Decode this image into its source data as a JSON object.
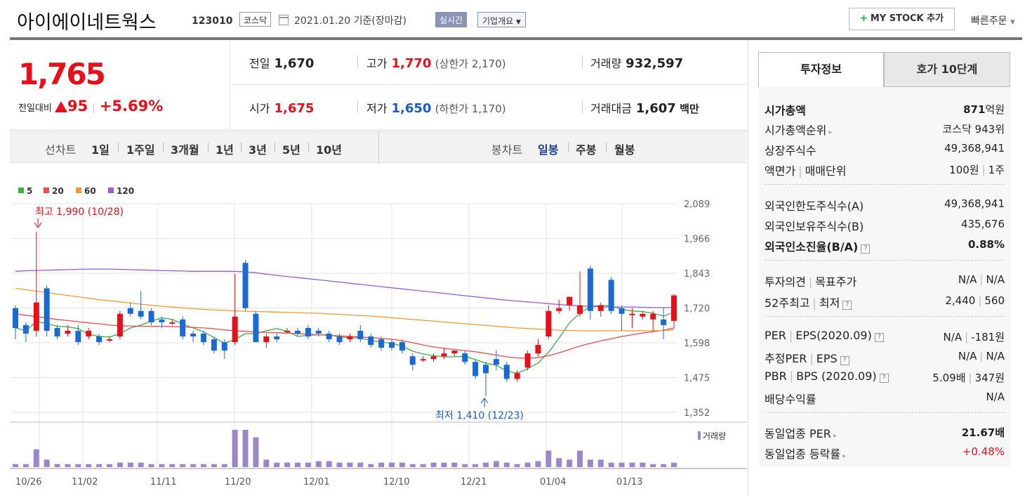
{
  "header": {
    "company": "아이에이네트웍스",
    "code": "123010",
    "market": "코스닥",
    "date": "2021.01.20 기준(장마감)",
    "realtime": "실시간",
    "overview": "기업개요",
    "mystock": "MY STOCK 추가",
    "quick_order": "빠른주문"
  },
  "price": {
    "current": "1,765",
    "change_label": "전일대비",
    "change": "95",
    "change_pct": "+5.69%"
  },
  "stats": {
    "prev_label": "전일",
    "prev": "1,670",
    "high_label": "고가",
    "high": "1,770",
    "upper_limit": "(상한가 2,170)",
    "volume_label": "거래량",
    "volume": "932,597",
    "open_label": "시가",
    "open": "1,675",
    "low_label": "저가",
    "low": "1,650",
    "lower_limit": "(하한가 1,170)",
    "amount_label": "거래대금",
    "amount": "1,607",
    "amount_unit": "백만"
  },
  "period_bar": {
    "line_label": "선차트",
    "line_periods": [
      "1일",
      "1주일",
      "3개월",
      "1년",
      "3년",
      "5년",
      "10년"
    ],
    "candle_label": "봉차트",
    "candle_periods": [
      "일봉",
      "주봉",
      "월봉"
    ],
    "candle_active": "일봉"
  },
  "chart_data": {
    "type": "candlestick",
    "legend": [
      "5",
      "20",
      "60",
      "120"
    ],
    "legend_colors": [
      "#3cb043",
      "#ef4b4b",
      "#f39a2e",
      "#9b5bd0"
    ],
    "y_ticks": [
      "2,089",
      "1,966",
      "1,843",
      "1,720",
      "1,598",
      "1,475",
      "1,352"
    ],
    "x_ticks": [
      "10/26",
      "11/02",
      "11/11",
      "11/20",
      "12/01",
      "12/10",
      "12/21",
      "01/04",
      "01/13"
    ],
    "ylim": [
      1352,
      2089
    ],
    "high_note": "최고 1,990 (10/28)",
    "low_note": "최저 1,410 (12/23)",
    "volume_label": "거래량",
    "up_color": "#e5101a",
    "down_color": "#1a6ad6",
    "volume_color": "#9b86c9"
  },
  "side": {
    "tab_active": "투자정보",
    "tab_other": "호가 10단계",
    "rows": {
      "mcap_label": "시가총액",
      "mcap": "871",
      "mcap_unit": "억원",
      "mcap_rank_label": "시가총액순위",
      "mcap_rank": "코스닥 943위",
      "shares_label": "상장주식수",
      "shares": "49,368,941",
      "par_label": "액면가",
      "trade_unit_label": "매매단위",
      "par": "100원",
      "trade_unit": "1주",
      "foreign_limit_label": "외국인한도주식수(A)",
      "foreign_limit": "49,368,941",
      "foreign_hold_label": "외국인보유주식수(B)",
      "foreign_hold": "435,676",
      "foreign_ratio_label": "외국인소진율(B/A)",
      "foreign_ratio": "0.88%",
      "opinion_label": "투자의견",
      "target_label": "목표주가",
      "opinion": "N/A",
      "target": "N/A",
      "w52_high_label": "52주최고",
      "w52_low_label": "최저",
      "w52_high": "2,440",
      "w52_low": "560",
      "per_label": "PER",
      "eps_label": "EPS(2020.09)",
      "per": "N/A",
      "eps": "-181원",
      "est_per_label": "추정PER",
      "est_eps_label": "EPS",
      "est_per": "N/A",
      "est_eps": "N/A",
      "pbr_label": "PBR",
      "bps_label": "BPS (2020.09)",
      "pbr": "5.09배",
      "bps": "347원",
      "div_label": "배당수익률",
      "div": "N/A",
      "ind_per_label": "동일업종 PER",
      "ind_per": "21.67배",
      "ind_chg_label": "동일업종 등락률",
      "ind_chg": "+0.48%"
    }
  }
}
